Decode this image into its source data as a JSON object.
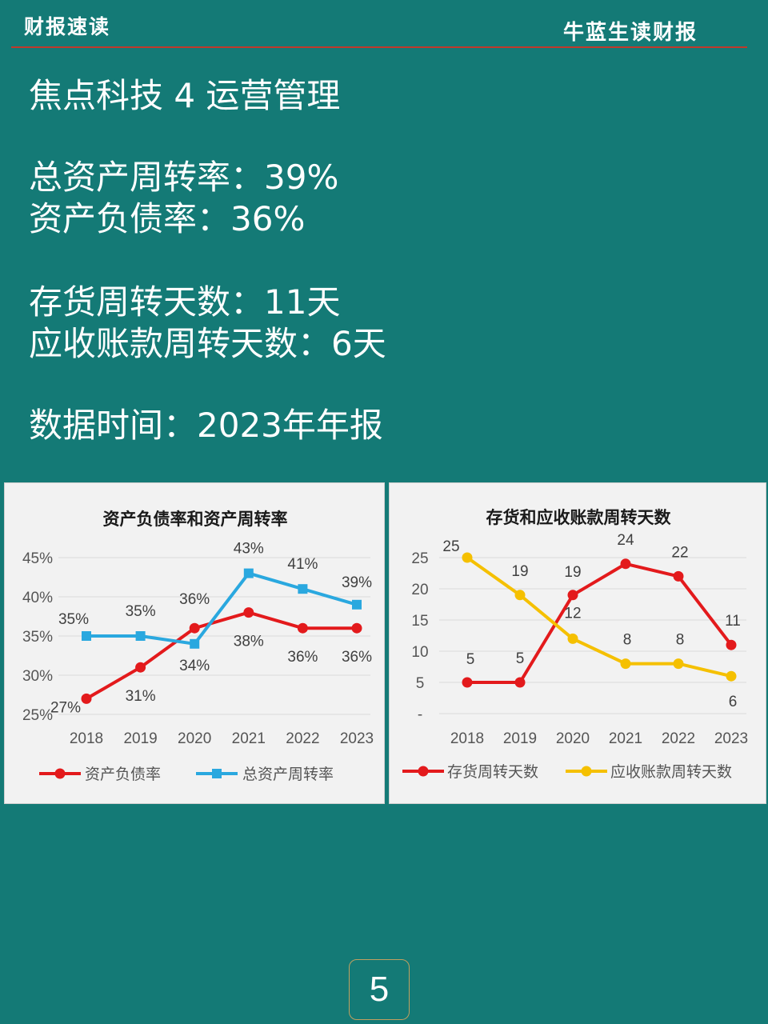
{
  "header": {
    "left": "财报速读",
    "right": "牛蓝生读财报"
  },
  "heading": "焦点科技 4 运营管理",
  "stats": [
    "总资产周转率：39%",
    "资产负债率：36%",
    "存货周转天数：11天",
    "应收账款周转天数：6天",
    "数据时间：2023年年报"
  ],
  "page_number": "5",
  "colors": {
    "background": "#147a76",
    "red": "#e31a1c",
    "blue": "#2aa8df",
    "yellow": "#f5c000"
  },
  "chart_data": [
    {
      "type": "line",
      "title": "资产负债率和资产周转率",
      "categories": [
        "2018",
        "2019",
        "2020",
        "2021",
        "2022",
        "2023"
      ],
      "y_ticks": [
        "25%",
        "30%",
        "35%",
        "40%",
        "45%"
      ],
      "ylim": [
        25,
        45
      ],
      "series": [
        {
          "name": "资产负债率",
          "values": [
            27,
            31,
            36,
            38,
            36,
            36
          ],
          "labels": [
            "27%",
            "31%",
            "36%",
            "38%",
            "36%",
            "36%"
          ],
          "color": "#e31a1c",
          "marker": "circle"
        },
        {
          "name": "总资产周转率",
          "values": [
            35,
            35,
            34,
            43,
            41,
            39
          ],
          "labels": [
            "35%",
            "35%",
            "34%",
            "43%",
            "41%",
            "39%"
          ],
          "color": "#2aa8df",
          "marker": "square"
        }
      ],
      "legend": "bottom"
    },
    {
      "type": "line",
      "title": "存货和应收账款周转天数",
      "categories": [
        "2018",
        "2019",
        "2020",
        "2021",
        "2022",
        "2023"
      ],
      "y_ticks": [
        "-",
        "5",
        "10",
        "15",
        "20",
        "25"
      ],
      "ylim": [
        0,
        25
      ],
      "series": [
        {
          "name": "存货周转天数",
          "values": [
            5,
            5,
            19,
            24,
            22,
            11
          ],
          "labels": [
            "5",
            "5",
            "19",
            "24",
            "22",
            "11"
          ],
          "color": "#e31a1c",
          "marker": "circle"
        },
        {
          "name": "应收账款周转天数",
          "values": [
            25,
            19,
            12,
            8,
            8,
            6
          ],
          "labels": [
            "25",
            "19",
            "12",
            "8",
            "8",
            "6"
          ],
          "color": "#f5c000",
          "marker": "circle"
        }
      ],
      "legend": "bottom"
    }
  ]
}
